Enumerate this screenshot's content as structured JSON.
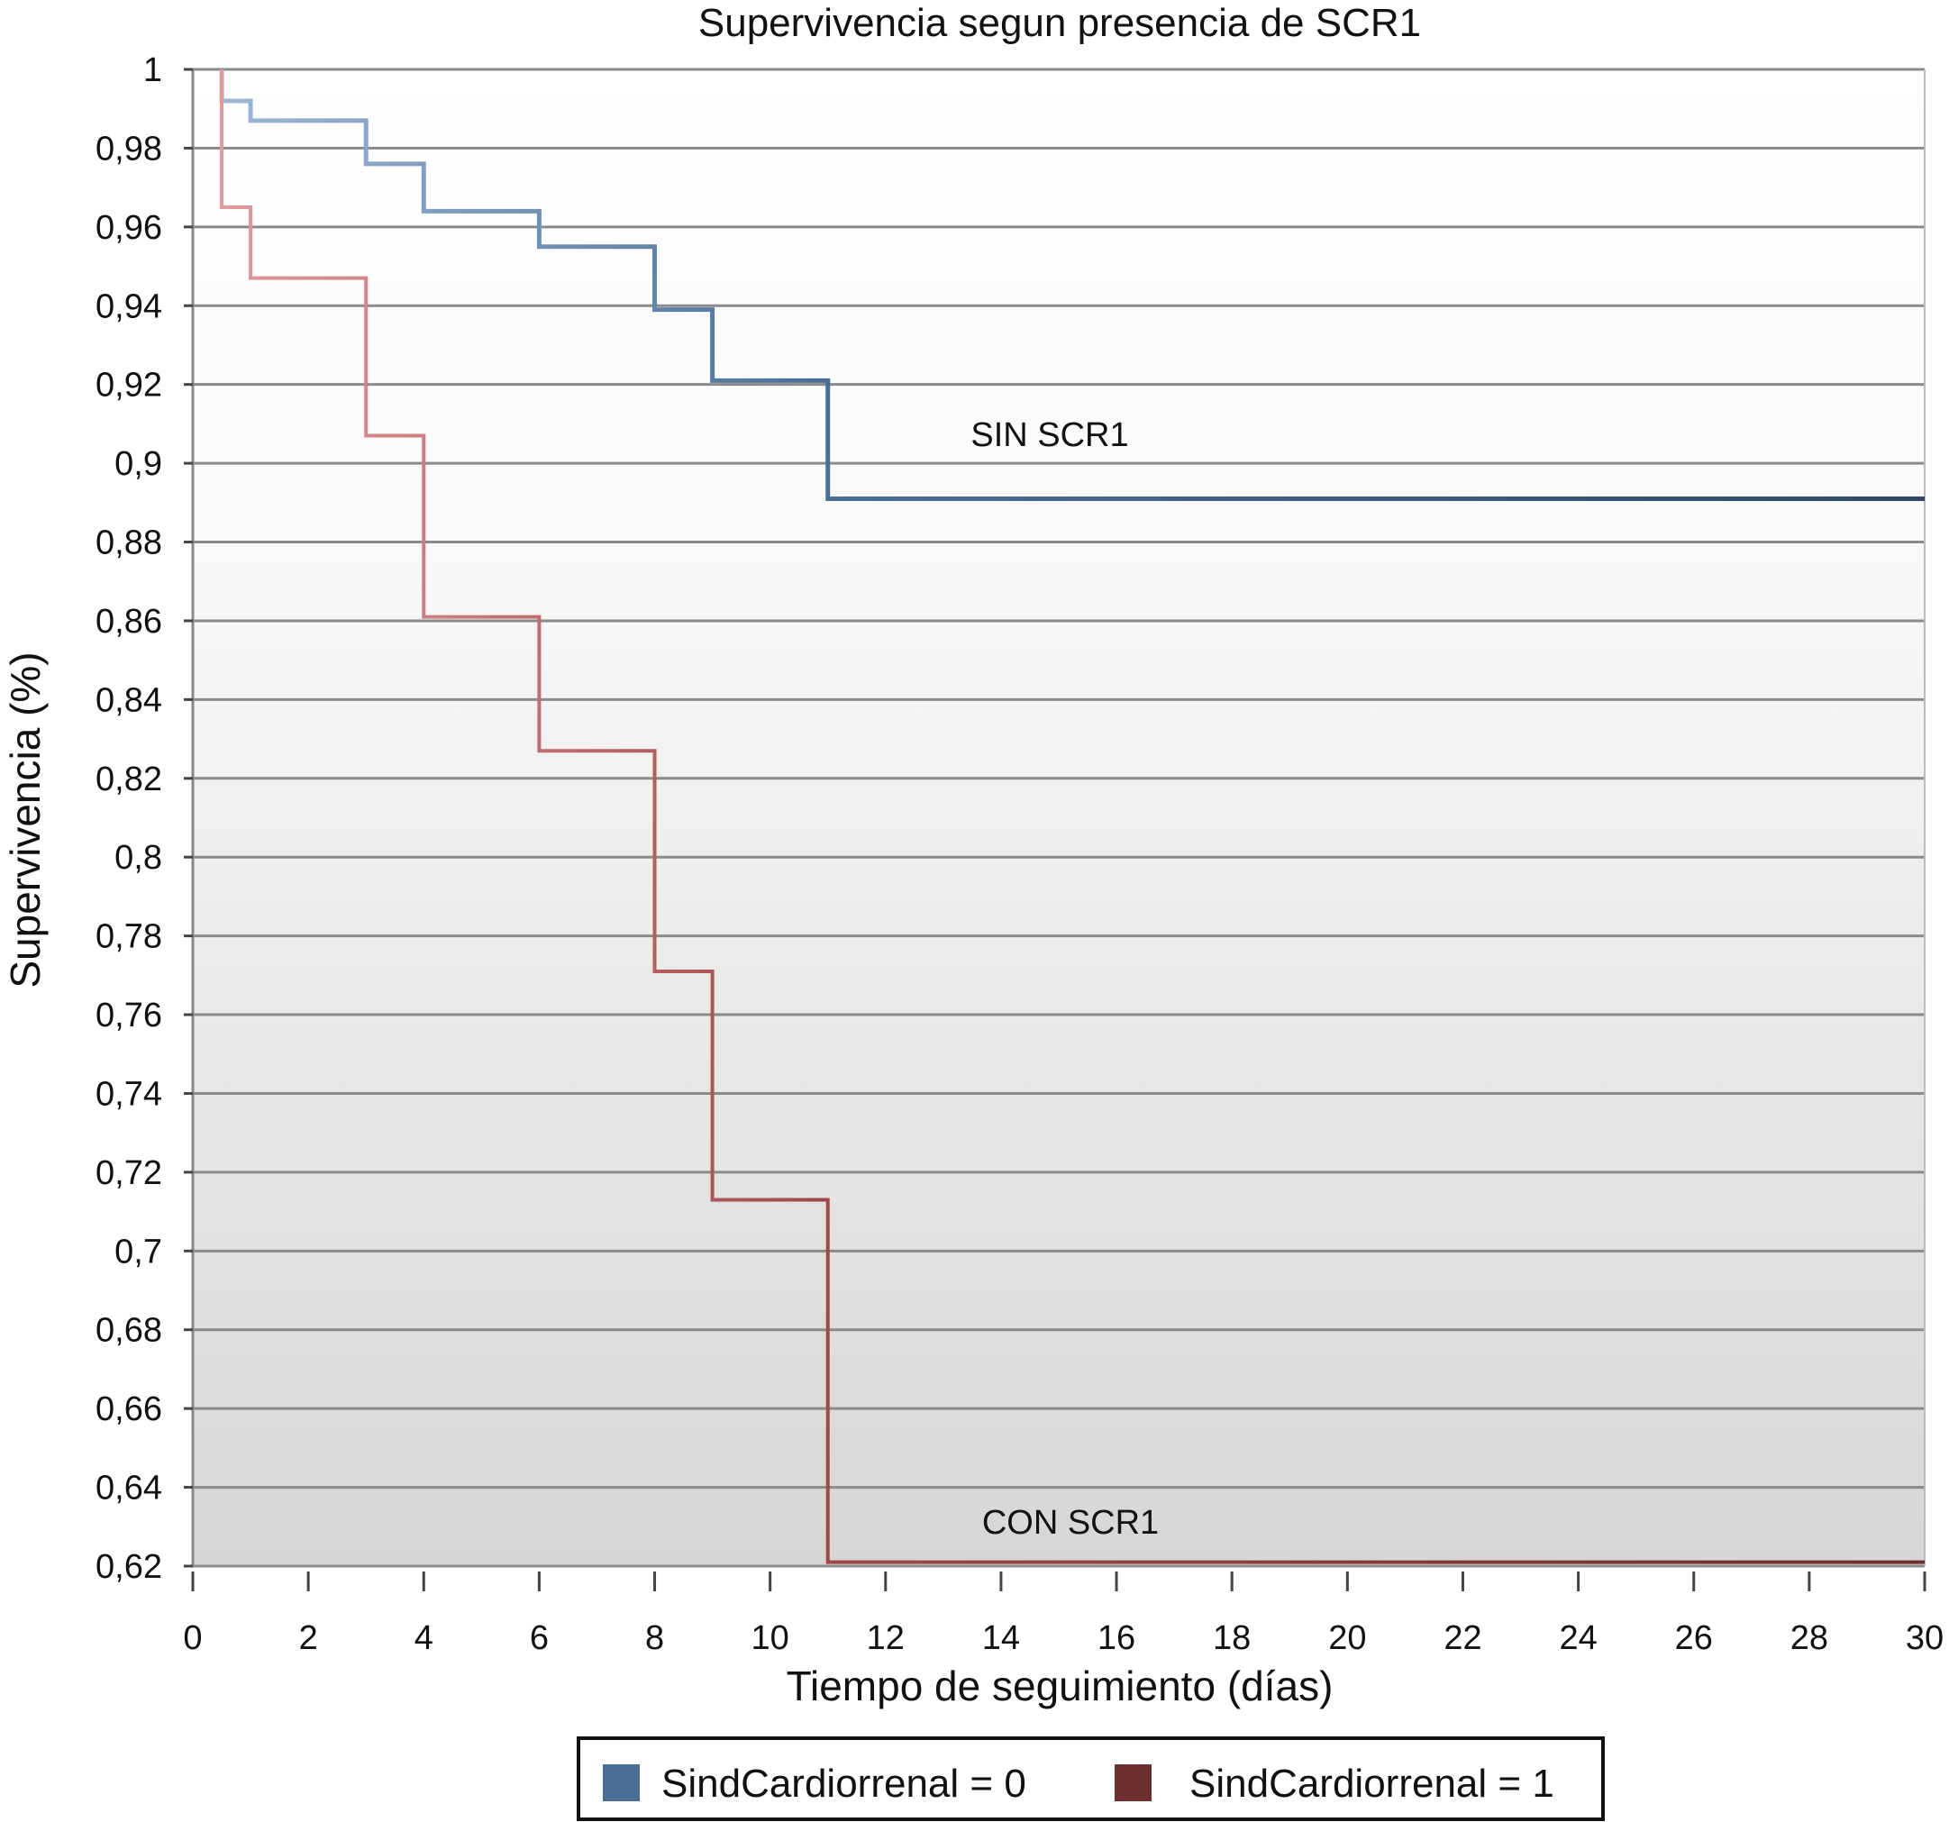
{
  "chart_data": {
    "type": "line",
    "subtype": "step",
    "title": "Supervivencia segun presencia de SCR1",
    "xlabel": "Tiempo de seguimiento (días)",
    "ylabel": "Supervivencia (%)",
    "xlim": [
      0,
      30
    ],
    "ylim": [
      0.62,
      1
    ],
    "xticks": [
      "0",
      "2",
      "4",
      "6",
      "8",
      "10",
      "12",
      "14",
      "16",
      "18",
      "20",
      "22",
      "24",
      "26",
      "28",
      "30"
    ],
    "yticks": [
      "1",
      "0,98",
      "0,96",
      "0,94",
      "0,92",
      "0,9",
      "0,88",
      "0,86",
      "0,84",
      "0,82",
      "0,8",
      "0,78",
      "0,76",
      "0,74",
      "0,72",
      "0,7",
      "0,68",
      "0,66",
      "0,64",
      "0,62"
    ],
    "grid": true,
    "legend_placement": "bottom",
    "series": [
      {
        "name": "SindCardiorrenal = 0",
        "color": "#4a6f96",
        "annotation": "SIN SCR1",
        "x": [
          0.5,
          0.5,
          1,
          3,
          4,
          6,
          8,
          9,
          11,
          30
        ],
        "y": [
          1,
          0.992,
          0.987,
          0.976,
          0.964,
          0.955,
          0.939,
          0.921,
          0.891,
          0.891
        ]
      },
      {
        "name": "SindCardiorrenal = 1",
        "color": "#6e2f2f",
        "annotation": "CON SCR1",
        "x": [
          0.5,
          0.5,
          1,
          3,
          4,
          6,
          8,
          9,
          11,
          30
        ],
        "y": [
          1,
          0.965,
          0.947,
          0.907,
          0.861,
          0.827,
          0.771,
          0.713,
          0.621,
          0.621
        ]
      }
    ]
  }
}
